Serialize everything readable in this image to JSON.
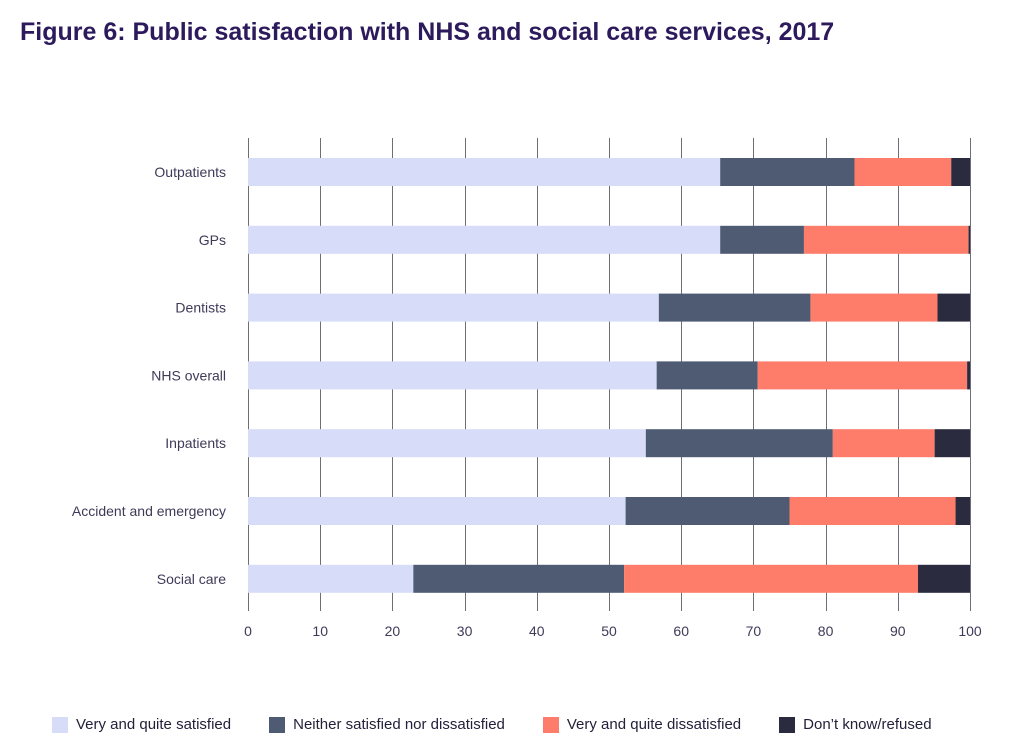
{
  "chart_data": {
    "type": "bar",
    "orientation": "horizontal",
    "stacked": true,
    "title": "Figure 6: Public satisfaction with NHS and social care services, 2017",
    "xlabel": "",
    "ylabel": "",
    "xlim": [
      0,
      100
    ],
    "ticks": [
      0,
      10,
      20,
      30,
      40,
      50,
      60,
      70,
      80,
      90,
      100
    ],
    "categories": [
      "Outpatients",
      "GPs",
      "Dentists",
      "NHS overall",
      "Inpatients",
      "Accident and emergency",
      "Social care"
    ],
    "series": [
      {
        "name": "Very and quite satisfied",
        "color": "#d7dcf8",
        "values": [
          65.4,
          65.4,
          56.9,
          56.6,
          55.1,
          52.3,
          22.9
        ]
      },
      {
        "name": "Neither satisfied nor dissatisfied",
        "color": "#4e5b73",
        "values": [
          18.6,
          11.6,
          21.0,
          14.0,
          25.9,
          22.7,
          29.2
        ]
      },
      {
        "name": "Very and quite dissatisfied",
        "color": "#fe7d6a",
        "values": [
          13.4,
          22.8,
          17.6,
          29.0,
          14.1,
          23.0,
          40.7
        ]
      },
      {
        "name": "Don’t know/refused",
        "color": "#2a2b3e",
        "values": [
          2.6,
          0.2,
          4.5,
          0.4,
          4.9,
          2.0,
          7.2
        ]
      }
    ],
    "legend_position": "bottom",
    "grid": true
  }
}
